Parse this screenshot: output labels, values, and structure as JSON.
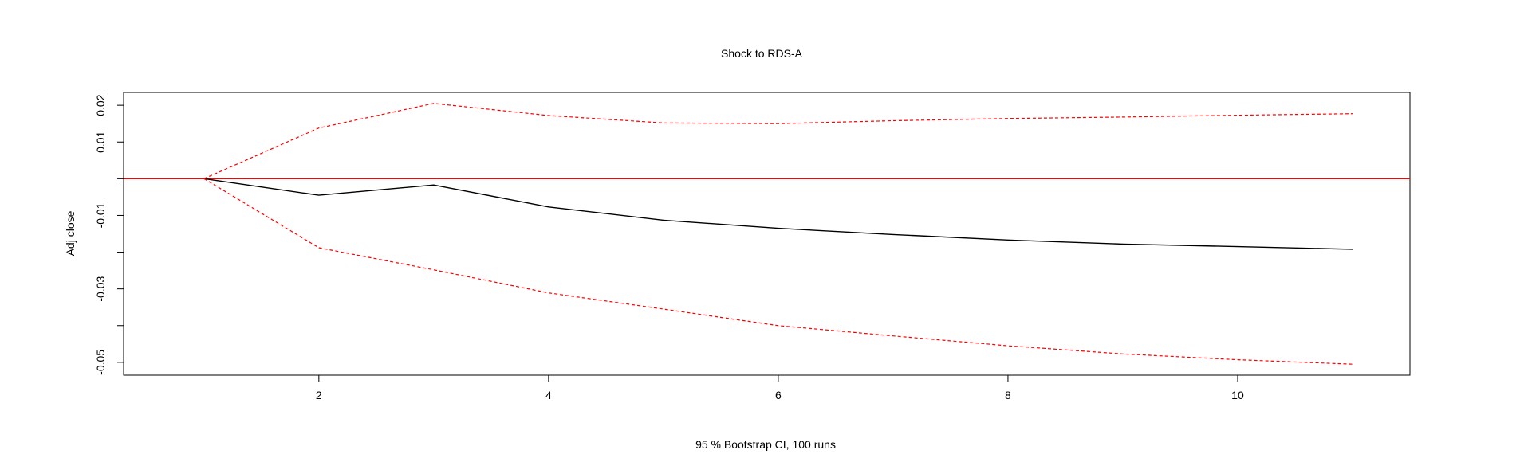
{
  "chart_data": {
    "type": "line",
    "title": "Shock to RDS-A",
    "xlabel": "95 % Bootstrap CI,  100 runs",
    "ylabel": "Adj close",
    "xlim": [
      0.3,
      11.5
    ],
    "ylim": [
      -0.0535,
      0.0235
    ],
    "x_ticks": [
      2,
      4,
      6,
      8,
      10
    ],
    "x_tick_labels": [
      "2",
      "4",
      "6",
      "8",
      "10"
    ],
    "y_ticks": [
      -0.05,
      -0.04,
      -0.03,
      -0.02,
      -0.01,
      0.0,
      0.01,
      0.02
    ],
    "y_tick_labels": [
      "-0.05",
      "",
      "-0.03",
      "",
      "-0.01",
      "",
      "0.01",
      "0.02"
    ],
    "grid": false,
    "legend": "none",
    "reference_line": {
      "y": 0,
      "color": "#ff0000"
    },
    "x": [
      1,
      2,
      3,
      4,
      5,
      6,
      7,
      8,
      9,
      10,
      11
    ],
    "series": [
      {
        "style": "solid",
        "color": "#000000",
        "values": [
          0.0,
          -0.0045,
          -0.0017,
          -0.0077,
          -0.0113,
          -0.0135,
          -0.0152,
          -0.0167,
          -0.0178,
          -0.0185,
          -0.0192
        ]
      },
      {
        "style": "dashed",
        "color": "#ff0000",
        "values": [
          0.0,
          0.0138,
          0.0205,
          0.0172,
          0.0152,
          0.015,
          0.0158,
          0.0164,
          0.0168,
          0.0173,
          0.0177
        ]
      },
      {
        "style": "dashed",
        "color": "#ff0000",
        "values": [
          0.0,
          -0.0188,
          -0.0248,
          -0.0311,
          -0.0355,
          -0.04,
          -0.0428,
          -0.0455,
          -0.0477,
          -0.0493,
          -0.0505
        ]
      }
    ]
  }
}
